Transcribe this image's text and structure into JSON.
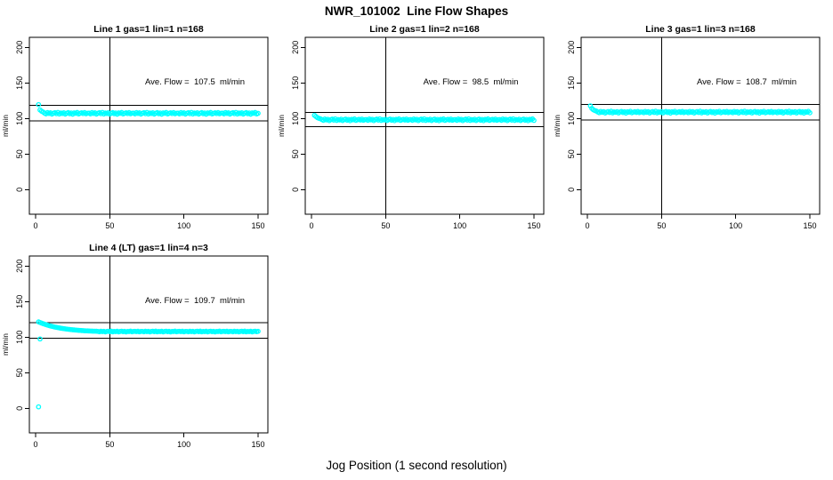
{
  "page": {
    "main_title": "NWR_101002  Line Flow Shapes",
    "x_axis_label": "Jog Position (1 second resolution)"
  },
  "chart_data": {
    "type": "scatter",
    "title": "NWR_101002  Line Flow Shapes",
    "xlabel": "Jog Position (1 second resolution)",
    "ylabel": "ml/min",
    "legend": "none",
    "grid": "off",
    "x_ticks": [
      0,
      50,
      100,
      150
    ],
    "y_ticks": [
      0,
      50,
      100,
      150,
      200
    ],
    "xlim": [
      -4,
      157
    ],
    "ylim": [
      -35,
      214
    ],
    "vline_x": 50,
    "ref_line_pct": 0.1,
    "colors": {
      "points": "#00FFFF",
      "axis": "#000000",
      "background": "#FFFFFF"
    },
    "subplots": [
      {
        "id": "line1",
        "title": "Line 1 gas=1 lin=1 n=168",
        "ave_flow": 107.5,
        "n": 168,
        "annotation": "Ave. Flow =  107.5  ml/min",
        "x_start": 2,
        "flows": [
          119.5,
          112.0,
          110.3,
          109.2,
          107.6,
          106.5,
          108.4,
          107.1,
          108.0,
          106.1,
          107.4,
          108.2,
          106.8,
          108.6,
          106.3,
          107.7,
          107.0,
          108.1,
          106.2,
          107.5,
          108.3,
          106.7,
          107.8,
          106.0,
          107.9,
          107.2,
          108.5,
          106.4,
          107.3,
          108.0,
          106.9,
          108.3,
          106.6,
          107.5,
          107.6,
          106.5,
          108.4,
          107.1,
          108.0,
          106.1,
          107.4,
          108.2,
          106.8,
          108.6,
          106.3,
          107.7,
          107.0,
          108.1,
          106.2,
          107.5,
          108.3,
          106.7,
          107.8,
          106.0,
          107.9,
          107.2,
          108.5,
          106.4,
          107.3,
          108.0,
          106.9,
          108.3,
          106.6,
          107.5,
          107.6,
          106.5,
          108.4,
          107.1,
          108.0,
          106.1,
          107.4,
          108.2,
          106.8,
          108.6,
          106.3,
          107.7,
          107.0,
          108.1,
          106.2,
          107.5,
          108.3,
          106.7,
          107.8,
          106.0,
          107.9,
          107.2,
          108.5,
          106.4,
          107.3,
          108.0,
          106.9,
          108.3,
          106.6,
          107.5,
          107.6,
          106.5,
          108.4,
          107.1,
          108.0,
          106.1,
          107.4,
          108.2,
          106.8,
          108.6,
          106.3,
          107.7,
          107.0,
          108.1,
          106.2,
          107.5,
          108.3,
          106.7,
          107.8,
          106.0,
          107.9,
          107.2,
          108.5,
          106.4,
          107.3,
          108.0,
          106.9,
          108.3,
          106.6,
          107.5,
          107.6,
          106.5,
          108.4,
          107.1,
          108.0,
          106.1,
          107.4,
          108.2,
          106.8,
          108.6,
          106.3,
          107.7,
          107.0,
          108.1,
          106.2,
          107.5,
          108.3,
          106.7,
          107.8,
          106.0,
          107.9,
          107.2,
          108.5,
          106.4,
          107.3
        ],
        "extra_points": []
      },
      {
        "id": "line2",
        "title": "Line 2 gas=1 lin=2 n=168",
        "ave_flow": 98.5,
        "n": 168,
        "annotation": "Ave. Flow =  98.5  ml/min",
        "x_start": 2,
        "flows": [
          104.5,
          102.8,
          101.2,
          100.2,
          99.6,
          98.5,
          97.4,
          99.3,
          98.0,
          98.9,
          97.0,
          98.3,
          99.1,
          97.7,
          99.5,
          97.2,
          98.6,
          97.9,
          99.0,
          97.1,
          98.4,
          99.2,
          97.6,
          98.7,
          96.9,
          98.8,
          98.1,
          99.4,
          97.3,
          98.2,
          98.9,
          97.8,
          99.2,
          97.5,
          98.4,
          98.5,
          97.4,
          99.3,
          98.0,
          98.9,
          97.0,
          98.3,
          99.1,
          97.7,
          99.5,
          97.2,
          98.6,
          97.9,
          99.0,
          97.1,
          98.4,
          99.2,
          97.6,
          98.7,
          96.9,
          98.8,
          98.1,
          99.4,
          97.3,
          98.2,
          98.9,
          97.8,
          99.2,
          97.5,
          98.4,
          98.5,
          97.4,
          99.3,
          98.0,
          98.9,
          97.0,
          98.3,
          99.1,
          97.7,
          99.5,
          97.2,
          98.6,
          97.9,
          99.0,
          97.1,
          98.4,
          99.2,
          97.6,
          98.7,
          96.9,
          98.8,
          98.1,
          99.4,
          97.3,
          98.2,
          98.9,
          97.8,
          99.2,
          97.5,
          98.4,
          98.5,
          97.4,
          99.3,
          98.0,
          98.9,
          97.0,
          98.3,
          99.1,
          97.7,
          99.5,
          97.2,
          98.6,
          97.9,
          99.0,
          97.1,
          98.4,
          99.2,
          97.6,
          98.7,
          96.9,
          98.8,
          98.1,
          99.4,
          97.3,
          98.2,
          98.9,
          97.8,
          99.2,
          97.5,
          98.4,
          98.5,
          97.4,
          99.3,
          98.0,
          98.9,
          97.0,
          98.3,
          99.1,
          97.7,
          99.5,
          97.2,
          98.6,
          97.9,
          99.0,
          97.1,
          98.4,
          99.2,
          97.6,
          98.7,
          96.9,
          98.8,
          98.1,
          99.4,
          97.3
        ],
        "extra_points": []
      },
      {
        "id": "line3",
        "title": "Line 3 gas=1 lin=3 n=168",
        "ave_flow": 108.7,
        "n": 168,
        "annotation": "Ave. Flow =  108.7  ml/min",
        "x_start": 2,
        "flows": [
          117.8,
          114.2,
          112.3,
          111.2,
          110.5,
          109.2,
          108.1,
          110.0,
          108.7,
          109.6,
          107.7,
          109.0,
          109.8,
          108.4,
          110.2,
          107.9,
          109.3,
          108.6,
          109.7,
          107.8,
          109.1,
          109.9,
          108.3,
          109.4,
          107.6,
          109.5,
          108.8,
          110.1,
          108.0,
          108.9,
          109.6,
          108.5,
          109.9,
          108.2,
          109.1,
          109.2,
          108.1,
          110.0,
          108.7,
          109.6,
          107.7,
          109.0,
          109.8,
          108.4,
          110.2,
          107.9,
          109.3,
          108.6,
          109.7,
          107.8,
          109.1,
          109.9,
          108.3,
          109.4,
          107.6,
          109.5,
          108.8,
          110.1,
          108.0,
          108.9,
          109.6,
          108.5,
          109.9,
          108.2,
          109.1,
          109.2,
          108.1,
          110.0,
          108.7,
          109.6,
          107.7,
          109.0,
          109.8,
          108.4,
          110.2,
          107.9,
          109.3,
          108.6,
          109.7,
          107.8,
          109.1,
          109.9,
          108.3,
          109.4,
          107.6,
          109.5,
          108.8,
          110.1,
          108.0,
          108.9,
          109.6,
          108.5,
          109.9,
          108.2,
          109.1,
          109.2,
          108.1,
          110.0,
          108.7,
          109.6,
          107.7,
          109.0,
          109.8,
          108.4,
          110.2,
          107.9,
          109.3,
          108.6,
          109.7,
          107.8,
          109.1,
          109.9,
          108.3,
          109.4,
          107.6,
          109.5,
          108.8,
          110.1,
          108.0,
          108.9,
          109.6,
          108.5,
          109.9,
          108.2,
          109.1,
          109.2,
          108.1,
          110.0,
          108.7,
          109.6,
          107.7,
          109.0,
          109.8,
          108.4,
          110.2,
          107.9,
          109.3,
          108.6,
          109.7,
          107.8,
          109.1,
          109.9,
          108.3,
          109.4,
          107.6,
          109.5,
          108.8,
          110.1,
          108.0
        ],
        "extra_points": []
      },
      {
        "id": "line4",
        "title": "Line 4 (LT) gas=1 lin=4 n=3",
        "ave_flow": 109.7,
        "n": 3,
        "annotation": "Ave. Flow =  109.7  ml/min",
        "x_start": 2,
        "flows": [
          121.5,
          120.6,
          119.8,
          119.0,
          118.3,
          117.6,
          116.9,
          116.3,
          115.7,
          115.2,
          114.7,
          114.2,
          113.8,
          113.4,
          113.0,
          112.6,
          112.3,
          112.0,
          111.7,
          111.4,
          111.1,
          110.9,
          110.6,
          110.4,
          110.2,
          110.0,
          109.8,
          109.6,
          109.5,
          109.3,
          109.2,
          109.0,
          108.9,
          108.8,
          108.7,
          108.6,
          108.5,
          108.4,
          108.4,
          108.3,
          108.1,
          107.6,
          108.4,
          107.8,
          108.2,
          107.4,
          108.0,
          108.3,
          107.7,
          108.5,
          107.5,
          108.1,
          107.8,
          108.3,
          107.4,
          108.0,
          108.4,
          107.7,
          108.2,
          107.3,
          108.1,
          107.9,
          108.5,
          107.6,
          108.0,
          108.2,
          107.8,
          108.4,
          107.5,
          108.1,
          108.1,
          107.6,
          108.4,
          107.8,
          108.2,
          107.4,
          108.0,
          108.3,
          107.7,
          108.5,
          107.5,
          108.1,
          107.8,
          108.3,
          107.4,
          108.0,
          108.4,
          107.7,
          108.2,
          107.3,
          108.1,
          107.9,
          108.5,
          107.6,
          108.0,
          108.2,
          107.8,
          108.4,
          107.5,
          108.1,
          108.1,
          107.6,
          108.4,
          107.8,
          108.2,
          107.4,
          108.0,
          108.3,
          107.7,
          108.5,
          107.5,
          108.1,
          107.8,
          108.3,
          107.4,
          108.0,
          108.4,
          107.7,
          108.2,
          107.3,
          108.1,
          107.9,
          108.5,
          107.6,
          108.0,
          108.2,
          107.8,
          108.4,
          107.5,
          108.1,
          108.1,
          107.6,
          108.4,
          107.8,
          108.2,
          107.4,
          108.0,
          108.3,
          107.7,
          108.5,
          107.5,
          108.1,
          107.8,
          108.3,
          107.4,
          108.0,
          108.4,
          107.7,
          108.2
        ],
        "extra_points": [
          [
            2,
            2.0
          ],
          [
            3,
            97.5
          ]
        ]
      }
    ]
  }
}
